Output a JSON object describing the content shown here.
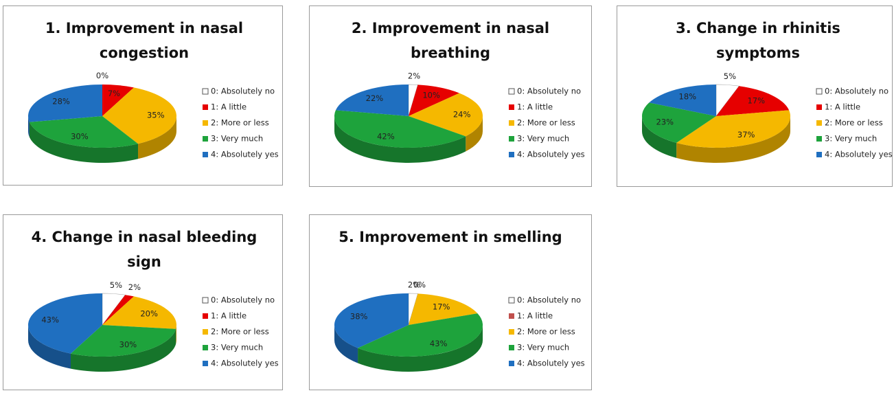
{
  "chart_data": [
    {
      "type": "pie",
      "title": "1. Improvement in nasal congestion",
      "categories": [
        "0: Absolutely no",
        "1: A little",
        "2: More or less",
        "3: Very much",
        "4: Absolutely yes"
      ],
      "values": [
        0,
        7,
        35,
        30,
        28
      ],
      "value_labels": [
        "0%",
        "7%",
        "35%",
        "30%",
        "28%"
      ],
      "colors": [
        "#ffffff",
        "#e60000",
        "#f5b800",
        "#1ea33c",
        "#1f6fc0"
      ]
    },
    {
      "type": "pie",
      "title": "2.  Improvement in nasal breathing",
      "categories": [
        "0: Absolutely no",
        "1: A little",
        "2: More or less",
        "3: Very much",
        "4: Absolutely yes"
      ],
      "values": [
        2,
        10,
        24,
        42,
        22
      ],
      "value_labels": [
        "2%",
        "10%",
        "24%",
        "42%",
        "22%"
      ],
      "colors": [
        "#ffffff",
        "#e60000",
        "#f5b800",
        "#1ea33c",
        "#1f6fc0"
      ]
    },
    {
      "type": "pie",
      "title": "3. Change in rhinitis symptoms",
      "categories": [
        "0: Absolutely no",
        "1: A little",
        "2: More or less",
        "3: Very much",
        "4: Absolutely yes"
      ],
      "values": [
        5,
        17,
        37,
        23,
        18
      ],
      "value_labels": [
        "5%",
        "17%",
        "37%",
        "23%",
        "18%"
      ],
      "colors": [
        "#ffffff",
        "#e60000",
        "#f5b800",
        "#1ea33c",
        "#1f6fc0"
      ]
    },
    {
      "type": "pie",
      "title": "4. Change in nasal bleeding sign",
      "categories": [
        "0: Absolutely no",
        "1: A little",
        "2: More or less",
        "3: Very much",
        "4: Absolutely yes"
      ],
      "values": [
        5,
        2,
        20,
        30,
        43
      ],
      "value_labels": [
        "5%",
        "2%",
        "20%",
        "30%",
        "43%"
      ],
      "colors": [
        "#ffffff",
        "#e60000",
        "#f5b800",
        "#1ea33c",
        "#1f6fc0"
      ]
    },
    {
      "type": "pie",
      "title": "5.  Improvement in smelling",
      "categories": [
        "0: Absolutely no",
        "1: A little",
        "2: More or less",
        "3: Very much",
        "4: Absolutely yes"
      ],
      "values": [
        2,
        0,
        17,
        43,
        38
      ],
      "value_labels": [
        "2%",
        "0%",
        "17%",
        "43%",
        "38%"
      ],
      "colors": [
        "#ffffff",
        "#c0504d",
        "#f5b800",
        "#1ea33c",
        "#1f6fc0"
      ]
    }
  ]
}
